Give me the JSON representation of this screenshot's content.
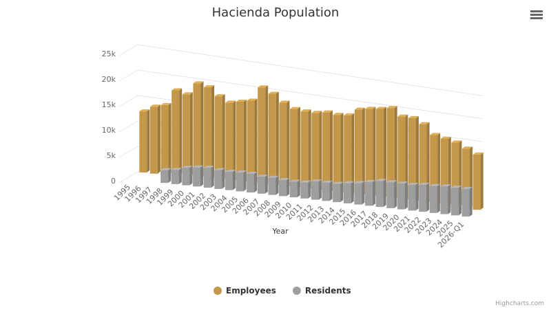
{
  "chart_data": {
    "type": "bar3d",
    "title": "Hacienda Population",
    "x_label": "Year",
    "categories": [
      "1995",
      "1996",
      "1997",
      "1998",
      "1999",
      "2000",
      "2001",
      "2002",
      "2003",
      "2004",
      "2005",
      "2006",
      "2007",
      "2008",
      "2009",
      "2010",
      "2011",
      "2012",
      "2013",
      "2014",
      "2015",
      "2016",
      "2017",
      "2018",
      "2019",
      "2020",
      "2021",
      "2022",
      "2023",
      "2024",
      "2025",
      "2026-Q1"
    ],
    "series": [
      {
        "name": "Employees",
        "color": "#c4984b",
        "values": [
          12000,
          13200,
          13800,
          17000,
          16500,
          19000,
          18500,
          17000,
          16000,
          16500,
          17000,
          20000,
          19000,
          17500,
          16500,
          16300,
          16300,
          16700,
          16500,
          16700,
          18200,
          18700,
          19000,
          19500,
          18000,
          18000,
          17000,
          15000,
          14500,
          14000,
          13000,
          12000
        ]
      },
      {
        "name": "Residents",
        "color": "#9e9e9e",
        "values": [
          null,
          null,
          null,
          2500,
          2800,
          3500,
          3800,
          4000,
          3800,
          3700,
          3800,
          3800,
          3500,
          3500,
          3300,
          3200,
          3300,
          3800,
          3800,
          3800,
          4200,
          4500,
          5000,
          5500,
          5500,
          5500,
          5500,
          5800,
          5800,
          6000,
          6000,
          6000
        ]
      }
    ],
    "ylim": [
      0,
      25000
    ],
    "yticks": [
      {
        "value": 0,
        "label": "0"
      },
      {
        "value": 5000,
        "label": "5k"
      },
      {
        "value": 10000,
        "label": "10k"
      },
      {
        "value": 15000,
        "label": "15k"
      },
      {
        "value": 20000,
        "label": "20k"
      },
      {
        "value": 25000,
        "label": "25k"
      }
    ],
    "grid": true,
    "legend": "bottom",
    "credits": "Highcharts.com"
  }
}
